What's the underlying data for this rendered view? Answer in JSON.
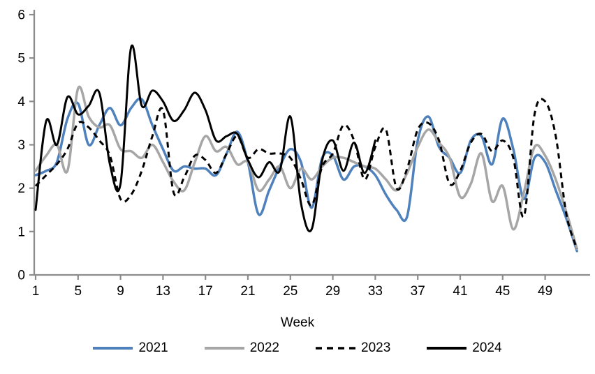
{
  "chart_data": {
    "type": "line",
    "title": "",
    "xlabel": "Week",
    "ylim": [
      0,
      6
    ],
    "yticks": [
      0,
      1,
      2,
      3,
      4,
      5,
      6
    ],
    "xticks": [
      1,
      5,
      9,
      13,
      17,
      21,
      25,
      29,
      33,
      37,
      41,
      45,
      49
    ],
    "x_range": [
      1,
      52
    ],
    "grid": false,
    "legend_position": "bottom",
    "axis_color": "#8C8C8C",
    "smooth": true,
    "series": [
      {
        "name": "2021",
        "color": "#4F81BD",
        "dash": "solid",
        "width": 3.5,
        "start_week": 1,
        "values": [
          2.3,
          2.4,
          2.6,
          3.6,
          3.95,
          3.0,
          3.45,
          3.85,
          3.45,
          3.85,
          4.05,
          3.45,
          2.9,
          2.4,
          2.5,
          2.45,
          2.45,
          2.3,
          2.8,
          3.3,
          2.6,
          1.4,
          1.95,
          2.5,
          2.9,
          2.6,
          1.55,
          2.7,
          2.75,
          2.2,
          2.5,
          2.5,
          2.3,
          1.85,
          1.5,
          1.35,
          3.1,
          3.65,
          2.95,
          2.7,
          2.35,
          3.1,
          3.2,
          2.55,
          3.6,
          2.9,
          1.75,
          2.7,
          2.6,
          1.95,
          1.3,
          0.55
        ]
      },
      {
        "name": "2022",
        "color": "#A6A6A6",
        "dash": "solid",
        "width": 3.5,
        "start_week": 1,
        "values": [
          2.4,
          2.75,
          3.0,
          2.4,
          4.3,
          3.65,
          3.4,
          3.45,
          2.9,
          2.85,
          2.7,
          3.0,
          2.6,
          2.15,
          1.95,
          2.6,
          3.2,
          2.85,
          2.95,
          2.55,
          2.6,
          1.95,
          2.2,
          2.5,
          2.0,
          2.45,
          2.2,
          2.5,
          2.7,
          2.7,
          2.6,
          2.5,
          2.45,
          2.2,
          1.95,
          2.35,
          2.95,
          3.35,
          3.05,
          2.7,
          1.8,
          2.1,
          2.8,
          1.7,
          2.05,
          1.05,
          1.9,
          2.95,
          2.75,
          2.2,
          1.45,
          0.6
        ]
      },
      {
        "name": "2023",
        "color": "#000000",
        "dash": "dashed",
        "width": 3,
        "start_week": 1,
        "values": [
          2.05,
          2.3,
          2.55,
          2.9,
          3.5,
          3.4,
          3.1,
          2.75,
          1.75,
          1.85,
          2.4,
          3.2,
          3.8,
          1.9,
          2.25,
          2.75,
          2.65,
          2.35,
          2.8,
          3.2,
          2.7,
          2.9,
          2.8,
          2.8,
          2.7,
          2.2,
          1.6,
          2.5,
          2.8,
          3.45,
          3.1,
          2.2,
          2.95,
          3.35,
          2.0,
          2.45,
          3.35,
          3.5,
          3.1,
          2.1,
          2.4,
          3.05,
          3.25,
          2.85,
          3.1,
          2.7,
          1.35,
          3.7,
          4.0,
          3.2,
          1.4,
          0.6
        ]
      },
      {
        "name": "2024",
        "color": "#000000",
        "dash": "solid",
        "width": 3,
        "start_week": 1,
        "values": [
          1.5,
          3.55,
          3.0,
          4.1,
          3.7,
          3.9,
          4.2,
          2.55,
          2.1,
          5.25,
          3.9,
          4.25,
          4.0,
          3.55,
          3.8,
          4.2,
          3.8,
          3.1,
          3.2,
          3.25,
          2.65,
          2.25,
          2.6,
          2.4,
          3.65,
          1.65,
          1.05,
          2.65,
          3.1,
          2.4,
          3.05,
          2.35,
          3.1
        ]
      }
    ]
  }
}
